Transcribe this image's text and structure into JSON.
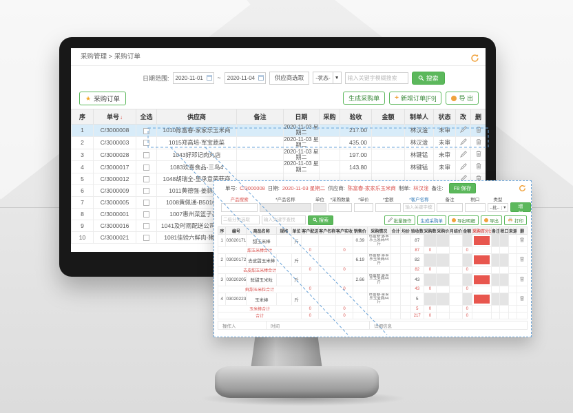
{
  "colors": {
    "accent_green": "#5cb85c",
    "accent_orange": "#f0a23c",
    "alert_red": "#d9534f",
    "link_blue": "#337ab7",
    "selected_row": "#d8ecf9",
    "red_cell": "#e8564e"
  },
  "breadcrumb": "采购管理 > 采购订单",
  "filters": {
    "date_label": "日期范围:",
    "date_from": "2020-11-01",
    "date_separator": "~",
    "date_to": "2020-11-04",
    "supplier_button": "供应商选取",
    "status_dropdown": "-状态-",
    "keyword_placeholder": "输入关键字模糊搜索",
    "search_button": "搜索"
  },
  "toolbar": {
    "tab_label": "采购订单",
    "generate_button": "生成采购单",
    "add_button": "新增订单[F9]",
    "export_button": "导 出"
  },
  "orders_table": {
    "headers": [
      "序",
      "单号",
      "全选",
      "供应商",
      "备注",
      "日期",
      "采购",
      "验收",
      "金额",
      "制单人",
      "状态",
      "改",
      "删"
    ],
    "sort_header": "单号",
    "sort_arrow": "↓",
    "rows": [
      {
        "no": "1",
        "code": "C/3000008",
        "supplier": "1010陈富春-家家乐玉米商",
        "remark": "",
        "date": "2020-11-03 星期二",
        "purchase": "",
        "accept": "217.00",
        "amount": "",
        "maker": "林汉淦",
        "status": "未审",
        "selected": true
      },
      {
        "no": "2",
        "code": "C/3000003",
        "supplier": "1015郑高培-军宝蔬菜",
        "remark": "",
        "date": "2020-11-03 星期二",
        "purchase": "",
        "accept": "435.00",
        "amount": "",
        "maker": "林汉淦",
        "status": "未审"
      },
      {
        "no": "3",
        "code": "C/3000028",
        "supplier": "1043好邓记肉丸店",
        "remark": "",
        "date": "2020-11-03 星期二",
        "purchase": "",
        "accept": "197.00",
        "amount": "",
        "maker": "林键锰",
        "status": "未审"
      },
      {
        "no": "4",
        "code": "C/3000017",
        "supplier": "1083欢喜食品-三鸟4",
        "remark": "",
        "date": "2020-11-03 星期二",
        "purchase": "",
        "accept": "143.80",
        "amount": "",
        "maker": "林键锰",
        "status": "未审"
      },
      {
        "no": "5",
        "code": "C/3000012",
        "supplier": "1048胡瑞全-里承意菌菇商",
        "remark": "",
        "date": "",
        "purchase": "",
        "accept": "",
        "amount": "",
        "maker": "",
        "status": ""
      },
      {
        "no": "6",
        "code": "C/3000009",
        "supplier": "1011黄德强-姜蒜批发",
        "remark": "",
        "date": "",
        "purchase": "",
        "accept": "",
        "amount": "",
        "maker": "",
        "status": ""
      },
      {
        "no": "7",
        "code": "C/3000005",
        "supplier": "1008黄佩通-B5010蔬菜",
        "remark": "",
        "date": "",
        "purchase": "",
        "accept": "",
        "amount": "",
        "maker": "",
        "status": ""
      },
      {
        "no": "8",
        "code": "C/3000001",
        "supplier": "1007惠州菜篮子基地",
        "remark": "",
        "date": "",
        "purchase": "",
        "accept": "",
        "amount": "",
        "maker": "",
        "status": ""
      },
      {
        "no": "9",
        "code": "C/3000016",
        "supplier": "1041及时雨配送公司-三鸟3",
        "remark": "",
        "date": "",
        "purchase": "",
        "accept": "",
        "amount": "",
        "maker": "",
        "status": ""
      },
      {
        "no": "10",
        "code": "C/3000021",
        "supplier": "1081佳验六鲜肉-猪肉商4",
        "remark": "",
        "date": "",
        "purchase": "",
        "accept": "",
        "amount": "",
        "maker": "",
        "status": ""
      }
    ]
  },
  "popup": {
    "header": {
      "order_label": "单号:",
      "order_no": "C/3000008",
      "date_label": "日期:",
      "date": "2020-11-03 星期二",
      "supplier_label": "供应商:",
      "supplier": "陈富春-家家乐玉米商",
      "maker_label": "制单:",
      "maker": "林汉淦",
      "remark_label": "备注:",
      "save_button": "F8 保存"
    },
    "form": {
      "fields": [
        {
          "label": "产品搜索",
          "style": "red",
          "type": "input"
        },
        {
          "label": "*产品名称",
          "type": "readonly"
        },
        {
          "label": "单位",
          "type": "readonly"
        },
        {
          "label": "*采购数量",
          "type": "input"
        },
        {
          "label": "*单价",
          "type": "input"
        },
        {
          "label": "*金额",
          "type": "input"
        },
        {
          "label": "*客户名称",
          "style": "blue",
          "type": "input",
          "placeholder": "输入关键字模糊搜索"
        },
        {
          "label": "备注",
          "type": "input"
        },
        {
          "label": "税口",
          "type": "input"
        },
        {
          "label": "类型",
          "type": "select",
          "value": "--批--"
        }
      ],
      "add_button": "增 加"
    },
    "toolbar": {
      "category_placeholder": "二级分类选取",
      "keyword_placeholder": "输入关键字查找",
      "search_button": "搜索",
      "batch_button": "批量操作",
      "generate_button": "生成采购单",
      "export_detail_button": "导出明细",
      "export_button": "导出",
      "print_button": "打印"
    },
    "detail_table": {
      "headers": [
        "序",
        "编号",
        "商品名称",
        "规格",
        "单位",
        "客户配送",
        "客户名称",
        "客户实收",
        "销售价",
        "采购情况",
        "合计",
        "均价",
        "验收数",
        "采购数",
        "采购价",
        "月结价",
        "金额",
        "采购百分比",
        "备注",
        "税口",
        "来源",
        "删"
      ],
      "red_header": "采购百分比",
      "rows": [
        {
          "type": "item",
          "no": "1",
          "code": "03020171",
          "name": "甜玉米棒",
          "unit": "斤",
          "price": "0.39",
          "info": "陈富春-家家乐玉米商#4斤",
          "accept": "87"
        },
        {
          "type": "subtotal",
          "name": "甜玉米棒合计",
          "delivery": "0",
          "received": "0",
          "accept": "87",
          "purchase_qty": "0",
          "amount": "0"
        },
        {
          "type": "item",
          "no": "2",
          "code": "03020172",
          "name": "去皮甜玉米棒",
          "unit": "斤",
          "price": "6.19",
          "info": "陈富春-家家乐玉米商#4斤",
          "accept": "82"
        },
        {
          "type": "subtotal",
          "name": "去皮甜玉米棒合计",
          "delivery": "0",
          "received": "0",
          "accept": "82",
          "purchase_qty": "0",
          "amount": "0"
        },
        {
          "type": "item",
          "no": "3",
          "code": "03020205",
          "name": "鲜甜玉米粒",
          "unit": "斤",
          "price": "2.66",
          "info": "陈富春-家家乐玉米商#4斤",
          "accept": "43"
        },
        {
          "type": "subtotal",
          "name": "鲜甜玉米粒合计",
          "delivery": "0",
          "received": "0",
          "accept": "43",
          "purchase_qty": "0",
          "amount": "0"
        },
        {
          "type": "item",
          "no": "4",
          "code": "03020223",
          "name": "玉米棒",
          "unit": "斤",
          "price": "",
          "info": "陈富春-家家乐玉米商#4斤",
          "accept": "5"
        },
        {
          "type": "subtotal",
          "name": "玉米棒合计",
          "delivery": "0",
          "received": "0",
          "accept": "5",
          "purchase_qty": "0",
          "amount": "0"
        },
        {
          "type": "total",
          "name": "合计",
          "delivery": "0",
          "received": "0",
          "accept": "217",
          "purchase_qty": "0",
          "amount": "0"
        }
      ],
      "footer": [
        "操作人",
        "时间",
        "详细信息"
      ]
    }
  }
}
